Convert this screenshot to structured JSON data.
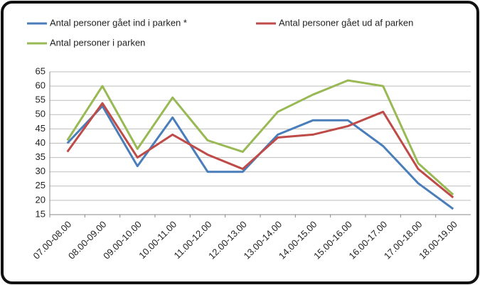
{
  "chart_data": {
    "type": "line",
    "categories": [
      "07.00-08.00",
      "08.00-09.00",
      "09.00-10.00",
      "10.00-11.00",
      "11.00-12.00",
      "12.00-13.00",
      "13.00-14.00",
      "14.00-15.00",
      "15.00-16.00",
      "16.00-17.00",
      "17.00-18.00",
      "18.00-19.00"
    ],
    "series": [
      {
        "name": "Antal personer gået ind i parken *",
        "color": "#4a7ebb",
        "values": [
          40,
          53,
          32,
          49,
          30,
          30,
          43,
          48,
          48,
          39,
          26,
          17
        ]
      },
      {
        "name": "Antal personer gået ud af parken",
        "color": "#be4b48",
        "values": [
          37,
          54,
          35,
          43,
          36,
          31,
          42,
          43,
          46,
          51,
          31,
          21
        ]
      },
      {
        "name": "Antal personer i parken",
        "color": "#98b954",
        "values": [
          41,
          60,
          38,
          56,
          41,
          37,
          51,
          57,
          62,
          60,
          33,
          22
        ]
      }
    ],
    "ylim": [
      15,
      65
    ],
    "yticks": [
      15,
      20,
      25,
      30,
      35,
      40,
      45,
      50,
      55,
      60,
      65
    ],
    "grid": true
  }
}
